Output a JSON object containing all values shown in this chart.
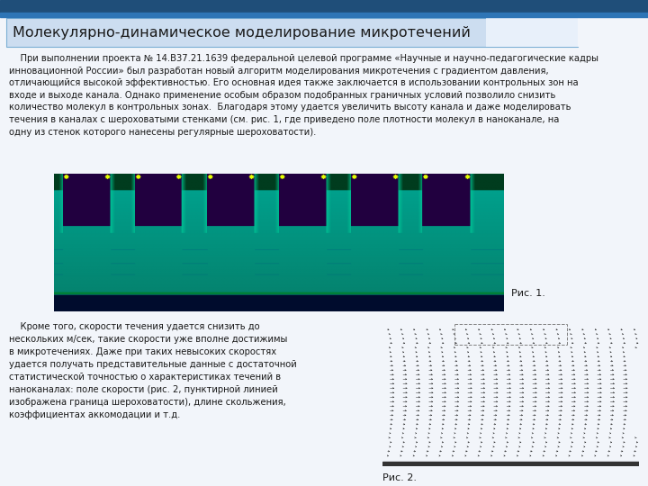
{
  "title": "Молекулярно-динамическое моделирование микротечений",
  "title_bg": "#ccddf0",
  "title_border": "#4a86c8",
  "title_fontsize": 11.5,
  "body_bg": "#f2f5fa",
  "para1": "    При выполнении проекта № 14.B37.21.1639 федеральной целевой программе «Научные и научно-педагогические кадры инновационной России» был разработан новый алгоритм моделирования микротечения с градиентом давления, отличающийся высокой эффективностью. Его основная идея также заключается в использовании контрольных зон на входе и выходе канала. Однако применение особым образом подобранных граничных условий позволило снизить количество молекул в контрольных зонах.  Благодаря этому удается увеличить высоту канала и даже моделировать течения в каналах с шероховатыми стенками (см. рис. 1, где приведено поле плотности молекул в наноканале, на одну из стенок которого нанесены регулярные шероховатости).",
  "para2": "    Кроме того, скорости течения удается снизить до\nнескольких м/сек, такие скорости уже вполне достижимы\nв микротечениях. Даже при таких невысоких скоростях\nудается получать представительные данные с достаточной\nстатистической точностью о характеристиках течений в\nнаноканалах: поле скорости (рис. 2, пунктирной линией\nизображена граница шероховатости), длине скольжения,\nкоэффициентах аккомодации и т.д.",
  "fig1_caption": "Рис. 1.",
  "fig2_caption": "Рис. 2.",
  "text_color": "#1a1a1a"
}
